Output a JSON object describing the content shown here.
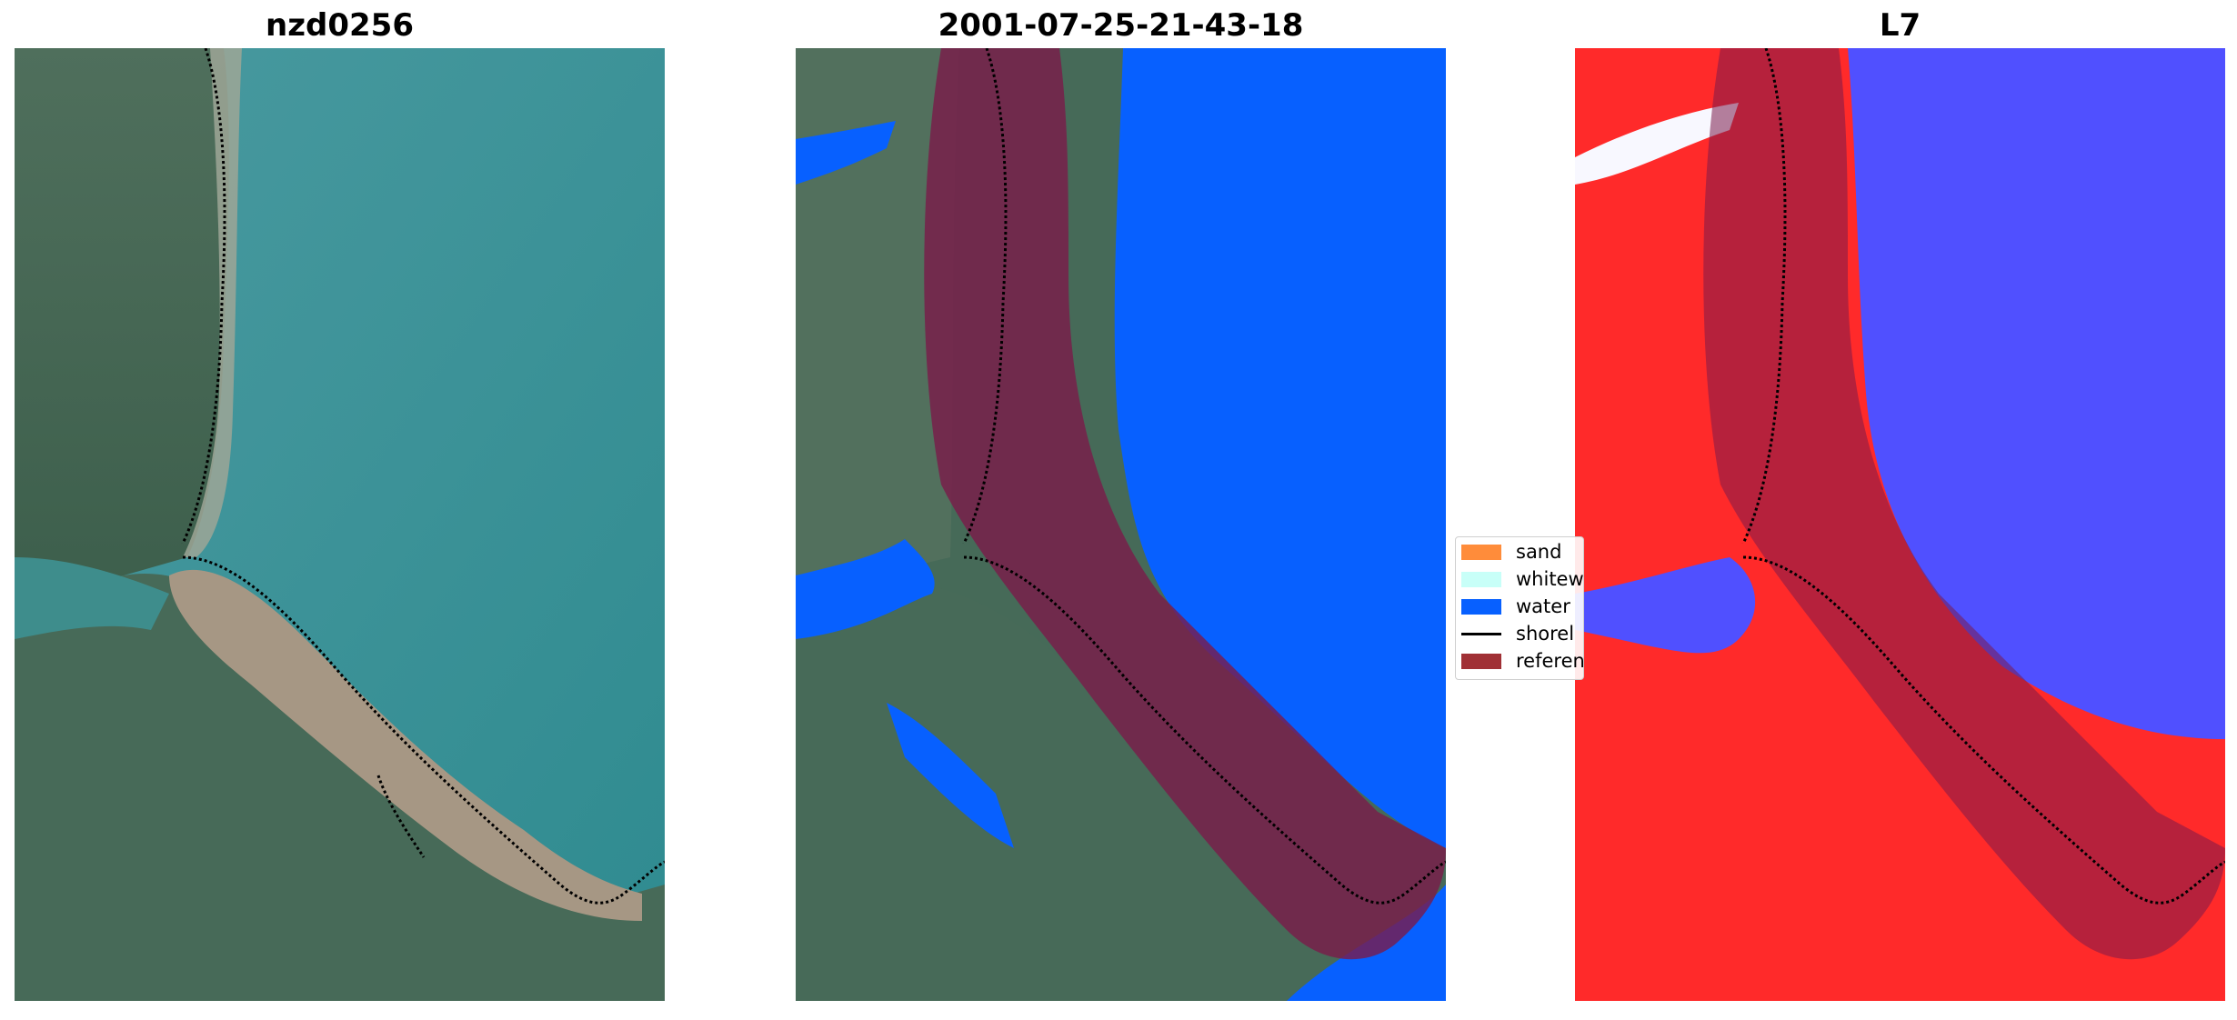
{
  "panels": [
    {
      "title": "nzd0256",
      "kind": "satellite-rgb"
    },
    {
      "title": "2001-07-25-21-43-18",
      "kind": "classified-overlay"
    },
    {
      "title": "L7",
      "kind": "index-map"
    }
  ],
  "legend": {
    "items": [
      {
        "label": "sand",
        "color": "#ff8c3a",
        "type": "patch"
      },
      {
        "label": "whitew",
        "color": "#c8fff8",
        "type": "patch"
      },
      {
        "label": "water",
        "color": "#0760ff",
        "type": "patch"
      },
      {
        "label": "shorel",
        "color": "#000000",
        "type": "line"
      },
      {
        "label": "referen",
        "color": "#a03035",
        "type": "patch"
      }
    ]
  },
  "colors": {
    "sea": "#3f8f95",
    "land": "#466a55",
    "spit": "#a89b88",
    "water_class": "#0760ff",
    "reference_buffer": "#7a1a4a",
    "index_land": "#ff2a2a",
    "index_water": "#5050ff"
  }
}
